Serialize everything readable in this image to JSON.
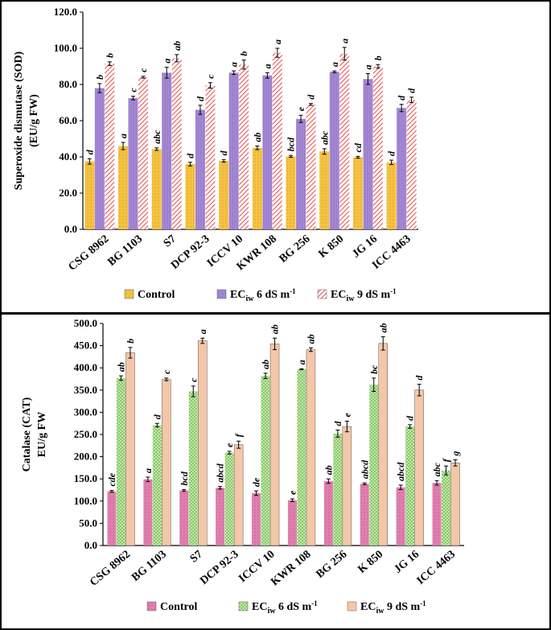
{
  "chart_data": [
    {
      "type": "bar",
      "ylabel_line1": "Superoxide dismutase (SOD)",
      "ylabel_line2": "(EU/g FW)",
      "ylim": [
        0,
        120
      ],
      "yticks": [
        "0.0",
        "20.0",
        "40.0",
        "60.0",
        "80.0",
        "100.0",
        "120.0"
      ],
      "categories": [
        "CSG 8962",
        "BG 1103",
        "S7",
        "DCP 92-3",
        "ICCV 10",
        "KWR 108",
        "BG 256",
        "K 850",
        "JG 16",
        "ICC 4463"
      ],
      "series": [
        {
          "name": "Control",
          "legend_main": "Control",
          "legend_sub": "",
          "legend_rest": "",
          "legend_sup": "",
          "color": "#F5C242",
          "pattern": "dots",
          "values": [
            37.5,
            46,
            44.3,
            36,
            37.8,
            45,
            40.3,
            43,
            39.8,
            37
          ],
          "errors": [
            1.5,
            2,
            0.7,
            1,
            0.7,
            1,
            0.5,
            1.5,
            0.5,
            1.2
          ],
          "labels": [
            "d",
            "a",
            "abc",
            "d",
            "d",
            "ab",
            "bcd",
            "abc",
            "cd",
            "d"
          ]
        },
        {
          "name": "ECiw 6 dS m-1",
          "legend_main": "EC",
          "legend_sub": "iw",
          "legend_rest": " 6 dS m",
          "legend_sup": "-1",
          "color": "#A78BD6",
          "pattern": "vlines",
          "values": [
            78,
            72.5,
            86.5,
            66,
            86.5,
            85,
            61,
            87,
            83,
            67
          ],
          "errors": [
            2.5,
            1,
            3,
            2.5,
            1,
            1.5,
            2,
            0.5,
            3,
            2
          ],
          "labels": [
            "b",
            "c",
            "a",
            "d",
            "a",
            "a",
            "e",
            "a",
            "a",
            "d"
          ]
        },
        {
          "name": "ECiw 9 dS m-1",
          "legend_main": "EC",
          "legend_sub": "iw",
          "legend_rest": " 9 dS m",
          "legend_sup": "-1",
          "color": "#E8565A",
          "pattern": "hatch",
          "values": [
            91.5,
            84,
            94.5,
            79.5,
            91,
            97.5,
            69,
            97,
            90,
            71.5
          ],
          "errors": [
            1,
            0.5,
            2,
            1.5,
            2.5,
            2.5,
            0.5,
            3.5,
            1,
            1.5
          ],
          "labels": [
            "b",
            "c",
            "ab",
            "c",
            "b",
            "a",
            "d",
            "a",
            "b",
            "d"
          ]
        }
      ]
    },
    {
      "type": "bar",
      "ylabel_line1": "Catalase (CAT)",
      "ylabel_line2": "EU/g FW",
      "ylim": [
        0,
        500
      ],
      "yticks": [
        "0.0",
        "50.0",
        "100.0",
        "150.0",
        "200.0",
        "250.0",
        "300.0",
        "350.0",
        "400.0",
        "450.0",
        "500.0"
      ],
      "categories": [
        "CSG 8962",
        "BG 1103",
        "S7",
        "DCP 92-3",
        "ICCV 10",
        "KWR 108",
        "BG 256",
        "K 850",
        "JG 16",
        "ICC 4463"
      ],
      "series": [
        {
          "name": "Control",
          "legend_main": "Control",
          "legend_sub": "",
          "legend_rest": "",
          "legend_sup": "",
          "color": "#E07FAE",
          "pattern": "dots",
          "values": [
            122,
            149,
            124,
            130,
            118,
            102,
            145,
            139,
            131,
            141
          ],
          "errors": [
            2,
            5,
            2,
            3,
            5,
            3,
            5,
            2,
            5,
            5
          ],
          "labels": [
            "cde",
            "a",
            "bcd",
            "abcd",
            "de",
            "e",
            "ab",
            "abcd",
            "abcd",
            "abc"
          ]
        },
        {
          "name": "ECiw 6 dS m-1",
          "legend_main": "EC",
          "legend_sub": "iw",
          "legend_rest": " 6 dS m",
          "legend_sup": "-1",
          "color": "#B8E39A",
          "pattern": "grid",
          "values": [
            377,
            271,
            347,
            209,
            382,
            397,
            252,
            362,
            268,
            169
          ],
          "errors": [
            5,
            4,
            12,
            3,
            6,
            1,
            8,
            15,
            4,
            10
          ],
          "labels": [
            "ab",
            "d",
            "c",
            "e",
            "ab",
            "a",
            "d",
            "bc",
            "d",
            "f"
          ]
        },
        {
          "name": "ECiw 9 dS m-1",
          "legend_main": "EC",
          "legend_sub": "iw",
          "legend_rest": " 9 dS m",
          "legend_sup": "-1",
          "color": "#F3C7A8",
          "pattern": "solid",
          "values": [
            434,
            374,
            461,
            227,
            454,
            441,
            268,
            455,
            350,
            186
          ],
          "errors": [
            12,
            3,
            6,
            8,
            13,
            4,
            12,
            15,
            13,
            7
          ],
          "labels": [
            "b",
            "c",
            "a",
            "f",
            "ab",
            "ab",
            "e",
            "ab",
            "d",
            "g"
          ]
        }
      ]
    }
  ]
}
